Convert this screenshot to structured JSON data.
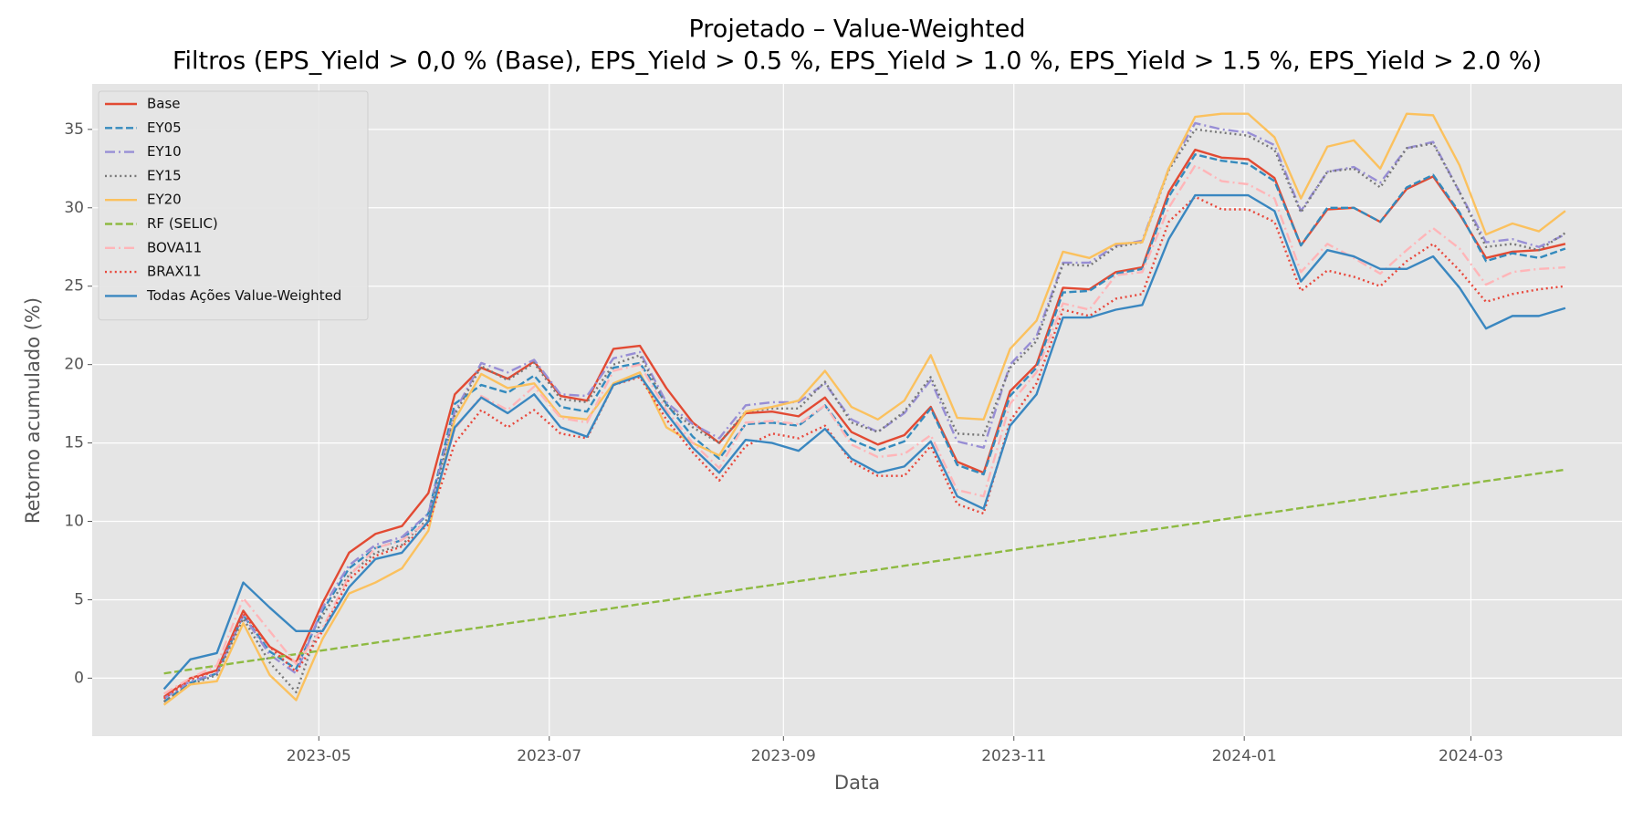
{
  "chart_data": {
    "type": "line",
    "title": "Projetado – Value-Weighted",
    "subtitle": "Filtros (EPS_Yield > 0,0 % (Base), EPS_Yield > 0.5 %, EPS_Yield > 1.0 %, EPS_Yield > 1.5 %, EPS_Yield > 2.0 %)",
    "xlabel": "Data",
    "ylabel": "Retorno acumulado (%)",
    "x": [
      "2023-03-21",
      "2023-03-28",
      "2023-04-04",
      "2023-04-11",
      "2023-04-18",
      "2023-04-25",
      "2023-05-02",
      "2023-05-09",
      "2023-05-16",
      "2023-05-23",
      "2023-05-30",
      "2023-06-06",
      "2023-06-13",
      "2023-06-20",
      "2023-06-27",
      "2023-07-04",
      "2023-07-11",
      "2023-07-18",
      "2023-07-25",
      "2023-08-01",
      "2023-08-08",
      "2023-08-15",
      "2023-08-22",
      "2023-08-29",
      "2023-09-05",
      "2023-09-12",
      "2023-09-19",
      "2023-09-26",
      "2023-10-03",
      "2023-10-10",
      "2023-10-17",
      "2023-10-24",
      "2023-10-31",
      "2023-11-07",
      "2023-11-14",
      "2023-11-21",
      "2023-11-28",
      "2023-12-05",
      "2023-12-12",
      "2023-12-19",
      "2023-12-26",
      "2024-01-02",
      "2024-01-09",
      "2024-01-16",
      "2024-01-23",
      "2024-01-30",
      "2024-02-06",
      "2024-02-13",
      "2024-02-20",
      "2024-02-27",
      "2024-03-05",
      "2024-03-12",
      "2024-03-19",
      "2024-03-26"
    ],
    "xlim": [
      "2023-03-02",
      "2024-04-10"
    ],
    "xticks": [
      {
        "value": "2023-05-01",
        "label": "2023-05"
      },
      {
        "value": "2023-07-01",
        "label": "2023-07"
      },
      {
        "value": "2023-09-01",
        "label": "2023-09"
      },
      {
        "value": "2023-11-01",
        "label": "2023-11"
      },
      {
        "value": "2024-01-01",
        "label": "2024-01"
      },
      {
        "value": "2024-03-01",
        "label": "2024-03"
      }
    ],
    "ylim": [
      -3.7,
      37.9
    ],
    "yticks": [
      0,
      5,
      10,
      15,
      20,
      25,
      30,
      35
    ],
    "grid": true,
    "legend": "upper left",
    "series": [
      {
        "name": "Base",
        "color": "#E24A33",
        "dash": "solid",
        "values": [
          -1.2,
          0,
          0.5,
          4.3,
          2.0,
          1.0,
          4.8,
          8.0,
          9.2,
          9.7,
          11.8,
          18.1,
          19.8,
          19.1,
          20.2,
          18.0,
          17.7,
          21.0,
          21.2,
          18.5,
          16.3,
          15.0,
          16.9,
          17.0,
          16.7,
          17.9,
          15.7,
          14.9,
          15.5,
          17.3,
          13.8,
          13.1,
          18.3,
          20.0,
          24.9,
          24.8,
          25.9,
          26.2,
          31.0,
          33.7,
          33.2,
          33.1,
          31.9,
          27.6,
          29.9,
          30.0,
          29.1,
          31.2,
          32.0,
          29.6,
          26.8,
          27.2,
          27.3,
          27.7
        ]
      },
      {
        "name": "EY05",
        "color": "#348ABD",
        "dash": "dashed",
        "values": [
          -1.5,
          -0.3,
          0.3,
          4.0,
          1.7,
          0.6,
          4.3,
          7.0,
          8.3,
          8.8,
          10.5,
          17.5,
          18.7,
          18.2,
          19.3,
          17.3,
          17.0,
          19.8,
          20.1,
          17.5,
          15.4,
          14.0,
          16.2,
          16.3,
          16.1,
          17.4,
          15.2,
          14.5,
          15.1,
          17.2,
          13.6,
          13.0,
          18.0,
          19.8,
          24.6,
          24.7,
          25.8,
          26.1,
          30.7,
          33.4,
          33.0,
          32.8,
          31.7,
          27.6,
          30.0,
          30.0,
          29.1,
          31.3,
          32.1,
          29.7,
          26.6,
          27.1,
          26.8,
          27.4
        ]
      },
      {
        "name": "EY10",
        "color": "#988ED5",
        "dash": "dashdot",
        "values": [
          -1.3,
          -0.2,
          0.3,
          4.0,
          1.5,
          0.3,
          4.5,
          7.2,
          8.5,
          9.0,
          10.5,
          17.0,
          20.1,
          19.5,
          20.3,
          18.1,
          18.0,
          20.4,
          20.8,
          17.6,
          16.2,
          15.3,
          17.4,
          17.6,
          17.6,
          18.8,
          16.5,
          15.7,
          16.9,
          19.0,
          15.1,
          14.7,
          20.0,
          21.8,
          26.5,
          26.5,
          27.6,
          27.9,
          32.5,
          35.4,
          35.0,
          34.8,
          34.0,
          29.8,
          32.3,
          32.6,
          31.6,
          33.8,
          34.2,
          31.0,
          27.8,
          28.0,
          27.5,
          28.3
        ]
      },
      {
        "name": "EY15",
        "color": "#777777",
        "dash": "dotted",
        "values": [
          -1.5,
          -0.4,
          0.2,
          3.8,
          1.0,
          -0.9,
          4.0,
          6.6,
          8.0,
          8.5,
          10.2,
          16.8,
          19.9,
          19.0,
          20.1,
          17.8,
          17.6,
          20.0,
          20.6,
          17.4,
          16.0,
          15.0,
          17.0,
          17.2,
          17.2,
          18.9,
          16.3,
          15.7,
          17.0,
          19.2,
          15.6,
          15.5,
          19.8,
          21.5,
          26.4,
          26.3,
          27.5,
          27.8,
          32.4,
          35.0,
          34.8,
          34.6,
          33.7,
          29.7,
          32.3,
          32.5,
          31.3,
          33.8,
          34.1,
          31.0,
          27.5,
          27.7,
          27.3,
          28.4
        ]
      },
      {
        "name": "EY20",
        "color": "#FBC15E",
        "dash": "solid",
        "values": [
          -1.7,
          -0.4,
          -0.2,
          3.5,
          0.2,
          -1.4,
          2.5,
          5.4,
          6.1,
          7.0,
          9.4,
          16.5,
          19.4,
          18.5,
          18.8,
          16.7,
          16.5,
          18.8,
          19.5,
          16.0,
          15.0,
          14.2,
          17.0,
          17.3,
          17.7,
          19.6,
          17.3,
          16.5,
          17.7,
          20.6,
          16.6,
          16.5,
          21.0,
          22.8,
          27.2,
          26.8,
          27.7,
          27.8,
          32.5,
          35.8,
          36.0,
          36.0,
          34.5,
          30.6,
          33.9,
          34.3,
          32.5,
          36.0,
          35.9,
          32.7,
          28.3,
          29.0,
          28.5,
          29.8
        ]
      },
      {
        "name": "RF (SELIC)",
        "color": "#8EBA42",
        "dash": "dashed",
        "values": [
          0.3,
          0.55,
          0.79,
          1.04,
          1.28,
          1.53,
          1.77,
          2.02,
          2.26,
          2.51,
          2.75,
          3.0,
          3.24,
          3.49,
          3.73,
          3.98,
          4.22,
          4.47,
          4.72,
          4.96,
          5.21,
          5.45,
          5.7,
          5.94,
          6.19,
          6.43,
          6.68,
          6.92,
          7.17,
          7.41,
          7.66,
          7.9,
          8.15,
          8.4,
          8.64,
          8.89,
          9.13,
          9.38,
          9.62,
          9.87,
          10.11,
          10.36,
          10.6,
          10.85,
          11.09,
          11.34,
          11.58,
          11.83,
          12.08,
          12.32,
          12.57,
          12.81,
          13.06,
          13.3
        ]
      },
      {
        "name": "BOVA11",
        "color": "#FFB5B8",
        "dash": "dashdot",
        "values": [
          -1.0,
          0,
          0.8,
          5.1,
          3.0,
          0.9,
          3.2,
          6.5,
          8.3,
          8.8,
          10.0,
          15.9,
          18.0,
          17.1,
          18.6,
          16.6,
          16.3,
          19.6,
          20.0,
          17.1,
          15.0,
          13.4,
          16.3,
          16.4,
          16.2,
          17.4,
          14.9,
          14.1,
          14.3,
          15.5,
          12.0,
          11.6,
          17.5,
          19.5,
          23.9,
          23.5,
          25.7,
          25.9,
          30.0,
          32.7,
          31.7,
          31.5,
          30.6,
          25.9,
          27.7,
          26.8,
          25.8,
          27.3,
          28.7,
          27.4,
          25.1,
          25.9,
          26.1,
          26.2
        ]
      },
      {
        "name": "BRAX11",
        "color": "#E8473B",
        "dash": "dotted",
        "values": [
          -1.3,
          -0.1,
          0.5,
          4.1,
          2.0,
          0.4,
          3.0,
          6.3,
          7.8,
          8.4,
          9.8,
          15.0,
          17.1,
          16.0,
          17.1,
          15.6,
          15.3,
          18.7,
          19.2,
          16.5,
          14.4,
          12.6,
          14.8,
          15.6,
          15.3,
          16.1,
          13.8,
          12.9,
          12.9,
          14.8,
          11.1,
          10.5,
          16.4,
          18.8,
          23.5,
          23.1,
          24.2,
          24.5,
          29.1,
          30.7,
          29.9,
          29.9,
          29.1,
          24.7,
          26.0,
          25.6,
          25.0,
          26.6,
          27.7,
          26.0,
          24.0,
          24.5,
          24.8,
          25.0
        ]
      },
      {
        "name": "Todas Ações Value-Weighted",
        "color": "#3A87C0",
        "dash": "solid",
        "values": [
          -0.7,
          1.2,
          1.6,
          6.1,
          4.5,
          3.0,
          3.0,
          5.8,
          7.6,
          8.0,
          10.0,
          16.0,
          17.9,
          16.9,
          18.1,
          16.0,
          15.4,
          18.7,
          19.3,
          16.9,
          14.7,
          13.1,
          15.2,
          15.0,
          14.5,
          15.9,
          14.0,
          13.1,
          13.5,
          15.1,
          11.6,
          10.8,
          16.1,
          18.1,
          23.0,
          23.0,
          23.5,
          23.8,
          28.0,
          30.8,
          30.8,
          30.8,
          29.8,
          25.3,
          27.3,
          26.9,
          26.1,
          26.1,
          26.9,
          24.9,
          22.3,
          23.1,
          23.1,
          23.6
        ]
      }
    ]
  }
}
